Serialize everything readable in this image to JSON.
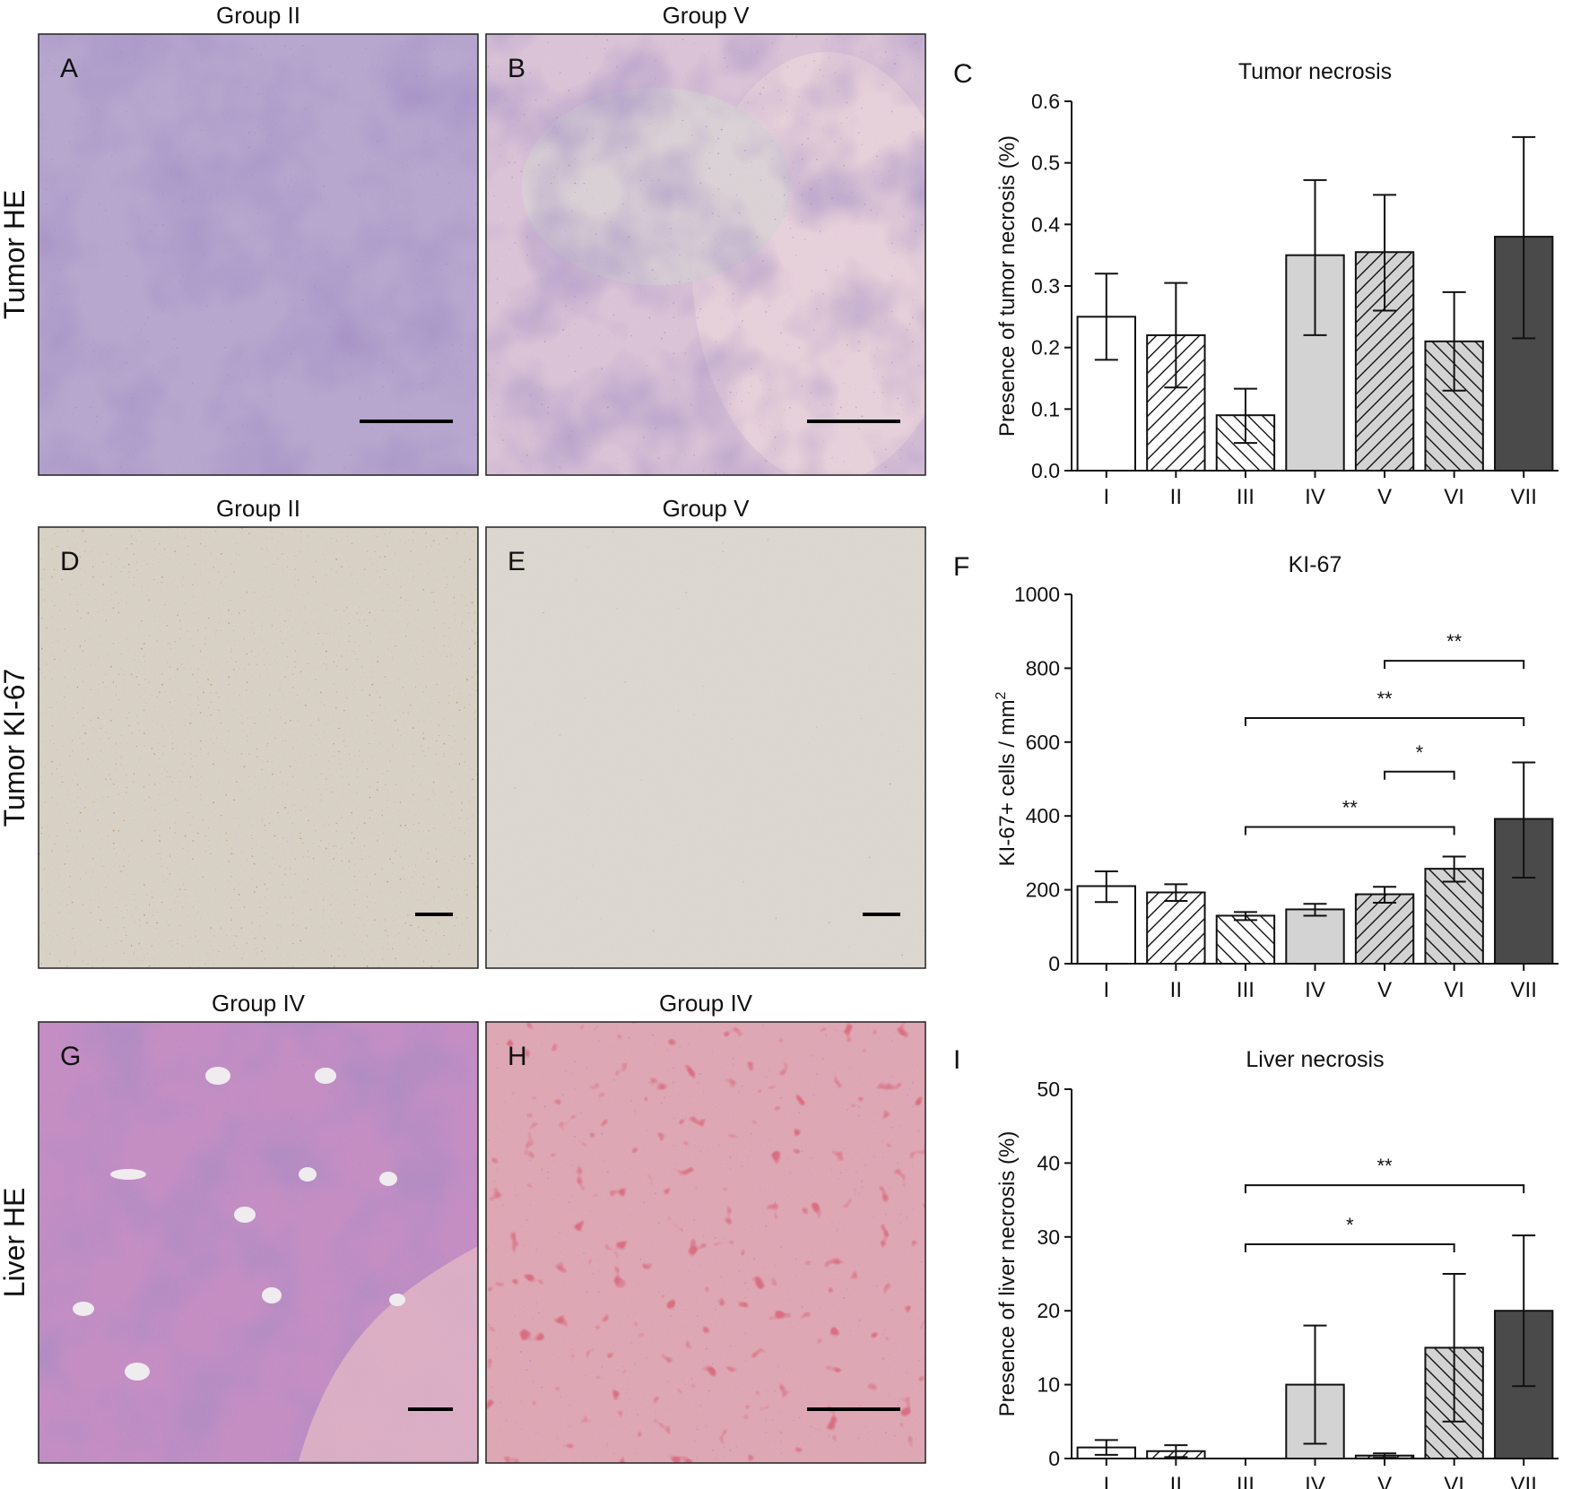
{
  "rows": [
    {
      "row_label": "Tumor HE",
      "panels": [
        {
          "letter": "A",
          "group": "Group II",
          "stain": "tumor-he-purple"
        },
        {
          "letter": "B",
          "group": "Group V",
          "stain": "tumor-he-pink"
        }
      ]
    },
    {
      "row_label": "Tumor KI-67",
      "panels": [
        {
          "letter": "D",
          "group": "Group II",
          "stain": "ki67-dense"
        },
        {
          "letter": "E",
          "group": "Group V",
          "stain": "ki67-sparse"
        }
      ]
    },
    {
      "row_label": "Liver HE",
      "panels": [
        {
          "letter": "G",
          "group": "Group IV",
          "stain": "liver-normal"
        },
        {
          "letter": "H",
          "group": "Group IV",
          "stain": "liver-necrotic"
        }
      ]
    }
  ],
  "colors": {
    "white_bar": "#ffffff",
    "light_bar": "#d3d3d3",
    "dark_bar": "#4a4a4a",
    "stroke": "#111111"
  },
  "chart_data": [
    {
      "panel_letter": "C",
      "type": "bar",
      "title": "Tumor necrosis",
      "ylabel": "Presence of tumor necrosis (%)",
      "ylabel_superscript": "",
      "categories": [
        "I",
        "II",
        "III",
        "IV",
        "V",
        "VI",
        "VII"
      ],
      "values": [
        0.25,
        0.22,
        0.09,
        0.35,
        0.355,
        0.21,
        0.38
      ],
      "err_low": [
        0.18,
        0.135,
        0.045,
        0.22,
        0.26,
        0.13,
        0.215
      ],
      "err_high": [
        0.32,
        0.305,
        0.133,
        0.472,
        0.448,
        0.29,
        0.542
      ],
      "fills": [
        "white",
        "white",
        "white",
        "light",
        "light",
        "light",
        "dark"
      ],
      "hatches": [
        "none",
        "fwd",
        "back",
        "none",
        "fwd",
        "back",
        "none"
      ],
      "ylim": [
        0,
        0.6
      ],
      "yticks": [
        "0.0",
        "0.1",
        "0.2",
        "0.3",
        "0.4",
        "0.5",
        "0.6"
      ],
      "significance": []
    },
    {
      "panel_letter": "F",
      "type": "bar",
      "title": "KI-67",
      "ylabel": "KI-67+ cells / mm",
      "ylabel_superscript": "2",
      "categories": [
        "I",
        "II",
        "III",
        "IV",
        "V",
        "VI",
        "VII"
      ],
      "values": [
        210,
        193,
        130,
        147,
        188,
        257,
        392
      ],
      "err_low": [
        167,
        170,
        118,
        130,
        165,
        222,
        233
      ],
      "err_high": [
        250,
        215,
        140,
        162,
        208,
        290,
        545
      ],
      "fills": [
        "white",
        "white",
        "white",
        "light",
        "light",
        "light",
        "dark"
      ],
      "hatches": [
        "none",
        "fwd",
        "back",
        "none",
        "fwd",
        "back",
        "none"
      ],
      "ylim": [
        0,
        1000
      ],
      "yticks": [
        "0",
        "200",
        "400",
        "600",
        "800",
        "1000"
      ],
      "significance": [
        {
          "from": 4,
          "to": 6,
          "level": 820,
          "label": "**"
        },
        {
          "from": 2,
          "to": 6,
          "level": 665,
          "label": "**"
        },
        {
          "from": 4,
          "to": 5,
          "level": 520,
          "label": "*"
        },
        {
          "from": 2,
          "to": 5,
          "level": 370,
          "label": "**"
        }
      ]
    },
    {
      "panel_letter": "I",
      "type": "bar",
      "title": "Liver necrosis",
      "ylabel": "Presence of liver necrosis (%)",
      "ylabel_superscript": "",
      "categories": [
        "I",
        "II",
        "III",
        "IV",
        "V",
        "VI",
        "VII"
      ],
      "values": [
        1.5,
        1.0,
        0,
        10,
        0.4,
        15,
        20
      ],
      "err_low": [
        0.5,
        0.2,
        0,
        2,
        0.1,
        5,
        9.8
      ],
      "err_high": [
        2.5,
        1.8,
        0,
        18,
        0.7,
        25,
        30.2
      ],
      "fills": [
        "white",
        "white",
        "white",
        "light",
        "light",
        "light",
        "dark"
      ],
      "hatches": [
        "none",
        "fwd",
        "back",
        "none",
        "fwd",
        "back",
        "none"
      ],
      "ylim": [
        0,
        50
      ],
      "yticks": [
        "0",
        "10",
        "20",
        "30",
        "40",
        "50"
      ],
      "significance": [
        {
          "from": 2,
          "to": 6,
          "level": 37,
          "label": "**"
        },
        {
          "from": 2,
          "to": 5,
          "level": 29,
          "label": "*"
        }
      ]
    }
  ]
}
